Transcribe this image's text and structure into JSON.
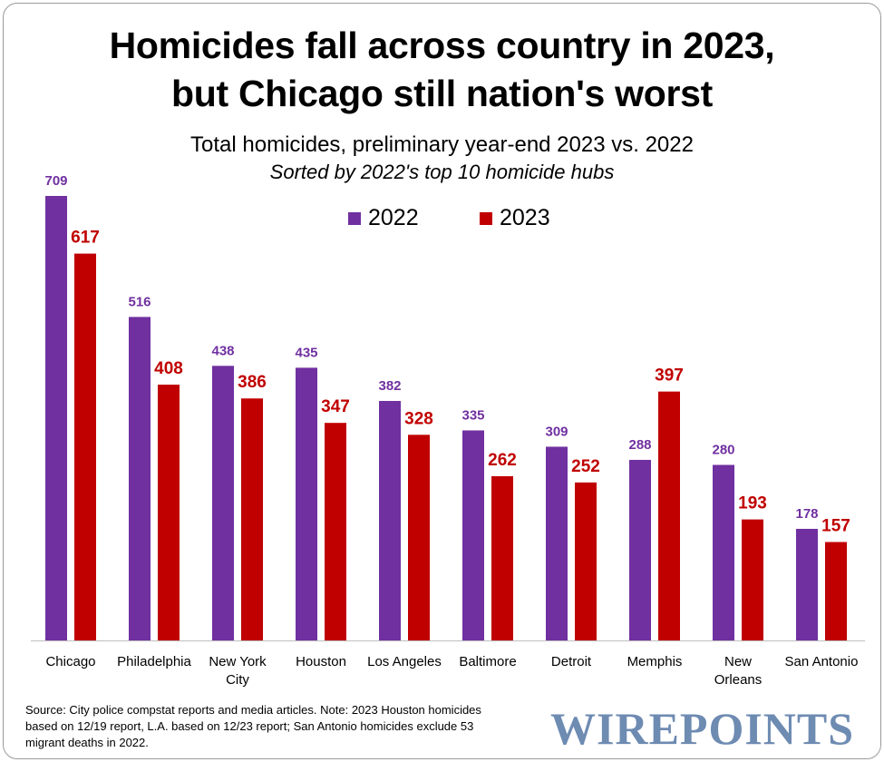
{
  "title": {
    "line1": "Homicides fall across country in 2023,",
    "line2": "but Chicago still nation's worst"
  },
  "subtitle": "Total homicides, preliminary year-end 2023 vs. 2022",
  "subtitle2": "Sorted by 2022's top 10 homicide hubs",
  "legend": [
    {
      "label": "2022",
      "color": "#7030a0"
    },
    {
      "label": "2023",
      "color": "#c00000"
    }
  ],
  "chart_data": {
    "type": "bar",
    "categories": [
      [
        "Chicago"
      ],
      [
        "Philadelphia"
      ],
      [
        "New York",
        "City"
      ],
      [
        "Houston"
      ],
      [
        "Los Angeles"
      ],
      [
        "Baltimore"
      ],
      [
        "Detroit"
      ],
      [
        "Memphis"
      ],
      [
        "New",
        "Orleans"
      ],
      [
        "San Antonio"
      ]
    ],
    "series": [
      {
        "name": "2022",
        "color": "#7030a0",
        "values": [
          709,
          516,
          438,
          435,
          382,
          335,
          309,
          288,
          280,
          178
        ]
      },
      {
        "name": "2023",
        "color": "#c00000",
        "values": [
          617,
          408,
          386,
          347,
          328,
          262,
          252,
          397,
          193,
          157
        ]
      }
    ],
    "title": "Homicides fall across country in 2023, but Chicago still nation's worst",
    "xlabel": "",
    "ylabel": "",
    "ylim": [
      0,
      709
    ],
    "grid": false,
    "legend_position": "top-center",
    "data_labels": true
  },
  "source": "Source: City police compstat reports and media articles. Note: 2023 Houston homicides based on 12/19 report, L.A. based on 12/23 report; San Antonio homicides exclude 53 migrant deaths in 2022.",
  "logo": "WIREPOINTS"
}
